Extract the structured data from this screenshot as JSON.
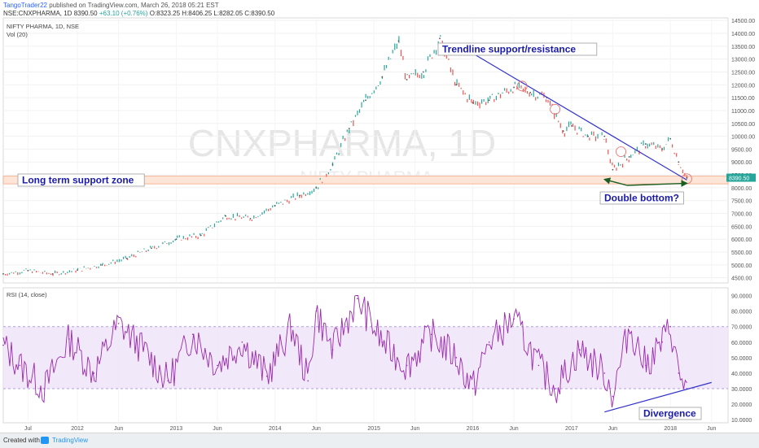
{
  "header": {
    "author": "TangoTrader22",
    "published": "published on TradingView.com, March 26, 2018 05:21 EST",
    "symbol": "NSE:CNXPHARMA, 1D",
    "last": "8390.50",
    "change": "+63.10 (+0.76%)",
    "ohlc": "O:8323.25 H:8406.25 L:8282.05 C:8390.50"
  },
  "pane_labels": {
    "main_title": "NIFTY PHARMA, 1D, NSE",
    "volume": "Vol (20)",
    "rsi": "RSI (14, close)"
  },
  "watermark": {
    "big": "CNXPHARMA, 1D",
    "small": "NIFTY PHARMA"
  },
  "footer": {
    "created": "Created with",
    "brand": "TradingView"
  },
  "colors": {
    "price_up": "#26a69a",
    "price_down": "#ef5350",
    "rsi_line": "#9c27b0",
    "rsi_band": "#ede4f7",
    "trendline": "#3333cc",
    "annotation_text": "#1a1aa8",
    "support_zone": "#f4a582",
    "arrow": "#1b5e20",
    "price_badge": "#26a69a"
  },
  "chart_data": [
    {
      "type": "line",
      "pane": "price",
      "x": [
        "2011-04",
        "2011-07",
        "2011-10",
        "2012-01",
        "2012-04",
        "2012-07",
        "2012-10",
        "2013-01",
        "2013-04",
        "2013-07",
        "2013-10",
        "2014-01",
        "2014-04",
        "2014-06",
        "2014-08",
        "2014-10",
        "2014-12",
        "2015-02",
        "2015-04",
        "2015-05",
        "2015-07",
        "2015-09",
        "2015-11",
        "2016-01",
        "2016-03",
        "2016-06",
        "2016-08",
        "2016-10",
        "2016-12",
        "2017-01",
        "2017-03",
        "2017-05",
        "2017-06",
        "2017-08",
        "2017-10",
        "2017-12",
        "2018-01",
        "2018-02",
        "2018-03"
      ],
      "y": [
        4650,
        4780,
        4650,
        4800,
        5000,
        5250,
        5650,
        6000,
        6150,
        6900,
        6800,
        7300,
        7700,
        8000,
        8900,
        10300,
        11400,
        12300,
        13700,
        12200,
        12500,
        13800,
        12000,
        11300,
        11400,
        11900,
        11700,
        11500,
        10200,
        10400,
        10000,
        10000,
        8700,
        9200,
        9700,
        9500,
        9900,
        9000,
        8390
      ]
    },
    {
      "type": "line",
      "pane": "rsi",
      "series_values_0_100": true,
      "x": [
        "2011-04",
        "2011-06",
        "2011-09",
        "2011-12",
        "2012-03",
        "2012-06",
        "2012-09",
        "2012-12",
        "2013-03",
        "2013-06",
        "2013-09",
        "2013-12",
        "2014-03",
        "2014-05",
        "2014-06",
        "2014-08",
        "2014-11",
        "2015-02",
        "2015-05",
        "2015-08",
        "2015-11",
        "2016-01",
        "2016-03",
        "2016-06",
        "2016-09",
        "2016-11",
        "2017-02",
        "2017-05",
        "2017-06",
        "2017-08",
        "2017-10",
        "2017-12",
        "2018-01",
        "2018-02",
        "2018-03"
      ],
      "y": [
        58,
        45,
        30,
        62,
        40,
        72,
        55,
        35,
        65,
        45,
        60,
        38,
        70,
        35,
        80,
        55,
        88,
        60,
        45,
        65,
        50,
        30,
        60,
        75,
        45,
        30,
        55,
        40,
        25,
        70,
        45,
        60,
        70,
        40,
        30
      ]
    }
  ],
  "axes": {
    "price_ticks": [
      "14500.00",
      "14000.00",
      "13500.00",
      "13000.00",
      "12500.00",
      "12000.00",
      "11500.00",
      "11000.00",
      "10500.00",
      "10000.00",
      "9500.00",
      "9000.00",
      "8500.00",
      "8000.00",
      "7500.00",
      "7000.00",
      "6500.00",
      "6000.00",
      "5500.00",
      "5000.00",
      "4500.00"
    ],
    "price_range": [
      4300,
      14600
    ],
    "price_badge": "8390.50",
    "rsi_ticks": [
      "90.0000",
      "80.0000",
      "70.0000",
      "60.0000",
      "50.0000",
      "40.0000",
      "30.0000",
      "20.0000",
      "10.0000"
    ],
    "rsi_range": [
      8,
      95
    ],
    "rsi_band": [
      30,
      70
    ],
    "x_ticks": [
      {
        "label": "Jul",
        "date": "2011-07"
      },
      {
        "label": "2012",
        "date": "2012-01"
      },
      {
        "label": "Jun",
        "date": "2012-06"
      },
      {
        "label": "2013",
        "date": "2013-01"
      },
      {
        "label": "Jun",
        "date": "2013-06"
      },
      {
        "label": "2014",
        "date": "2014-01"
      },
      {
        "label": "Jun",
        "date": "2014-06"
      },
      {
        "label": "2015",
        "date": "2015-01"
      },
      {
        "label": "Jun",
        "date": "2015-06"
      },
      {
        "label": "2016",
        "date": "2016-01"
      },
      {
        "label": "Jun",
        "date": "2016-06"
      },
      {
        "label": "2017",
        "date": "2017-01"
      },
      {
        "label": "Jun",
        "date": "2017-06"
      },
      {
        "label": "2018",
        "date": "2018-01"
      },
      {
        "label": "Jun",
        "date": "2018-06"
      }
    ]
  },
  "drawings": {
    "trendline": {
      "from": {
        "date": "2015-11",
        "value": 13600
      },
      "to": {
        "date": "2018-03",
        "value": 8300
      }
    },
    "support_zone": [
      8150,
      8450
    ],
    "rsi_divergence_line": {
      "from": {
        "date": "2017-05",
        "value": 15
      },
      "to": {
        "date": "2018-06",
        "value": 34
      }
    },
    "double_bottom_points": [
      {
        "date": "2017-05",
        "value": 8450
      },
      {
        "date": "2018-03",
        "value": 8300
      }
    ],
    "circles": [
      {
        "date": "2016-07",
        "value": 11950
      },
      {
        "date": "2016-11",
        "value": 11050
      },
      {
        "date": "2017-07",
        "value": 9400
      },
      {
        "date": "2018-03",
        "value": 8350
      }
    ]
  },
  "annotations": {
    "trendline": "Trendline support/resistance",
    "support": "Long term support zone",
    "double_bottom": "Double bottom?",
    "divergence": "Divergence"
  }
}
